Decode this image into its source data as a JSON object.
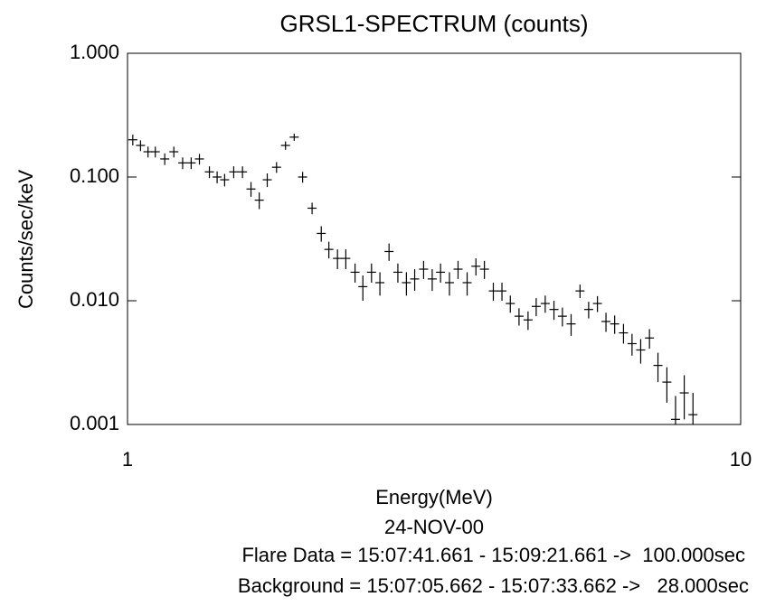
{
  "chart_data": {
    "type": "scatter",
    "title": "GRSL1-SPECTRUM (counts)",
    "xlabel": "Energy(MeV)",
    "ylabel": "Counts/sec/keV",
    "x_log": true,
    "y_log": true,
    "color": "#000000",
    "xlim": [
      1,
      10
    ],
    "xticks": [
      1,
      10
    ],
    "ylim": [
      0.001,
      1
    ],
    "yticks": [
      {
        "value": 0.001,
        "label": "0.001"
      },
      {
        "value": 0.01,
        "label": "0.010"
      },
      {
        "value": 0.1,
        "label": "0.100"
      },
      {
        "value": 1,
        "label": "1.000"
      }
    ],
    "x": [
      1.02,
      1.05,
      1.08,
      1.11,
      1.15,
      1.19,
      1.23,
      1.27,
      1.31,
      1.36,
      1.4,
      1.44,
      1.49,
      1.54,
      1.59,
      1.64,
      1.69,
      1.75,
      1.81,
      1.87,
      1.93,
      2.0,
      2.07,
      2.13,
      2.2,
      2.27,
      2.35,
      2.42,
      2.5,
      2.58,
      2.67,
      2.76,
      2.85,
      2.94,
      3.04,
      3.14,
      3.24,
      3.35,
      3.46,
      3.58,
      3.7,
      3.82,
      3.95,
      4.08,
      4.21,
      4.35,
      4.5,
      4.64,
      4.8,
      4.96,
      5.12,
      5.29,
      5.47,
      5.65,
      5.84,
      6.03,
      6.23,
      6.44,
      6.65,
      6.87,
      7.1,
      7.33,
      7.58,
      7.83,
      8.09,
      8.36
    ],
    "values": [
      0.2,
      0.18,
      0.16,
      0.16,
      0.14,
      0.16,
      0.13,
      0.13,
      0.14,
      0.11,
      0.1,
      0.095,
      0.11,
      0.11,
      0.08,
      0.065,
      0.095,
      0.12,
      0.18,
      0.21,
      0.1,
      0.056,
      0.035,
      0.026,
      0.022,
      0.022,
      0.017,
      0.013,
      0.017,
      0.014,
      0.025,
      0.017,
      0.014,
      0.015,
      0.018,
      0.015,
      0.017,
      0.014,
      0.018,
      0.014,
      0.019,
      0.018,
      0.012,
      0.012,
      0.0095,
      0.0075,
      0.007,
      0.009,
      0.0095,
      0.0085,
      0.0075,
      0.0065,
      0.012,
      0.0085,
      0.0095,
      0.0068,
      0.0065,
      0.0055,
      0.0045,
      0.004,
      0.005,
      0.003,
      0.0022,
      0.0011,
      0.0018,
      0.0012
    ],
    "errors": [
      0.02,
      0.018,
      0.016,
      0.016,
      0.015,
      0.016,
      0.014,
      0.014,
      0.014,
      0.012,
      0.011,
      0.011,
      0.012,
      0.012,
      0.011,
      0.01,
      0.012,
      0.012,
      0.014,
      0.014,
      0.01,
      0.006,
      0.005,
      0.004,
      0.004,
      0.004,
      0.003,
      0.003,
      0.003,
      0.003,
      0.004,
      0.003,
      0.003,
      0.003,
      0.003,
      0.003,
      0.003,
      0.003,
      0.003,
      0.003,
      0.003,
      0.003,
      0.002,
      0.002,
      0.0015,
      0.0012,
      0.0012,
      0.0015,
      0.0015,
      0.0015,
      0.0013,
      0.0013,
      0.0015,
      0.0013,
      0.0014,
      0.0012,
      0.0011,
      0.001,
      0.0009,
      0.0009,
      0.0009,
      0.0008,
      0.0007,
      0.0006,
      0.0007,
      0.0006
    ],
    "date": "24-NOV-00",
    "annotations": [
      "Flare Data = 15:07:41.661 - 15:09:21.661 ->  100.000sec",
      "Background = 15:07:05.662 - 15:07:33.662 ->   28.000sec"
    ]
  }
}
